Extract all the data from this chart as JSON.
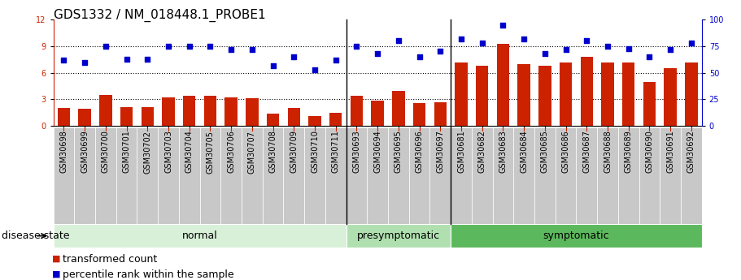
{
  "title": "GDS1332 / NM_018448.1_PROBE1",
  "samples": [
    "GSM30698",
    "GSM30699",
    "GSM30700",
    "GSM30701",
    "GSM30702",
    "GSM30703",
    "GSM30704",
    "GSM30705",
    "GSM30706",
    "GSM30707",
    "GSM30708",
    "GSM30709",
    "GSM30710",
    "GSM30711",
    "GSM30693",
    "GSM30694",
    "GSM30695",
    "GSM30696",
    "GSM30697",
    "GSM30681",
    "GSM30682",
    "GSM30683",
    "GSM30684",
    "GSM30685",
    "GSM30686",
    "GSM30687",
    "GSM30688",
    "GSM30689",
    "GSM30690",
    "GSM30691",
    "GSM30692"
  ],
  "bar_values": [
    2.0,
    1.9,
    3.5,
    2.1,
    2.1,
    3.2,
    3.4,
    3.4,
    3.2,
    3.1,
    1.4,
    2.0,
    1.1,
    1.5,
    3.4,
    2.9,
    4.0,
    2.6,
    2.7,
    7.2,
    6.8,
    9.3,
    7.0,
    6.8,
    7.2,
    7.8,
    7.2,
    7.2,
    5.0,
    6.5,
    7.2
  ],
  "dot_values": [
    62,
    60,
    75,
    63,
    63,
    75,
    75,
    75,
    72,
    72,
    57,
    65,
    53,
    62,
    75,
    68,
    80,
    65,
    70,
    82,
    78,
    95,
    82,
    68,
    72,
    80,
    75,
    73,
    65,
    72,
    78
  ],
  "groups": [
    {
      "name": "normal",
      "start": 0,
      "end": 14,
      "color": "#d8f0d8"
    },
    {
      "name": "presymptomatic",
      "start": 14,
      "end": 19,
      "color": "#b0e0b0"
    },
    {
      "name": "symptomatic",
      "start": 19,
      "end": 31,
      "color": "#5cb85c"
    }
  ],
  "ylim_left": [
    0,
    12
  ],
  "ylim_right": [
    0,
    100
  ],
  "yticks_left": [
    0,
    3,
    6,
    9,
    12
  ],
  "yticks_right": [
    0,
    25,
    50,
    75,
    100
  ],
  "bar_color": "#cc2200",
  "dot_color": "#0000cc",
  "background_color": "#ffffff",
  "plot_bg_color": "#ffffff",
  "title_fontsize": 11,
  "tick_fontsize": 7,
  "label_fontsize": 9,
  "legend_fontsize": 9
}
